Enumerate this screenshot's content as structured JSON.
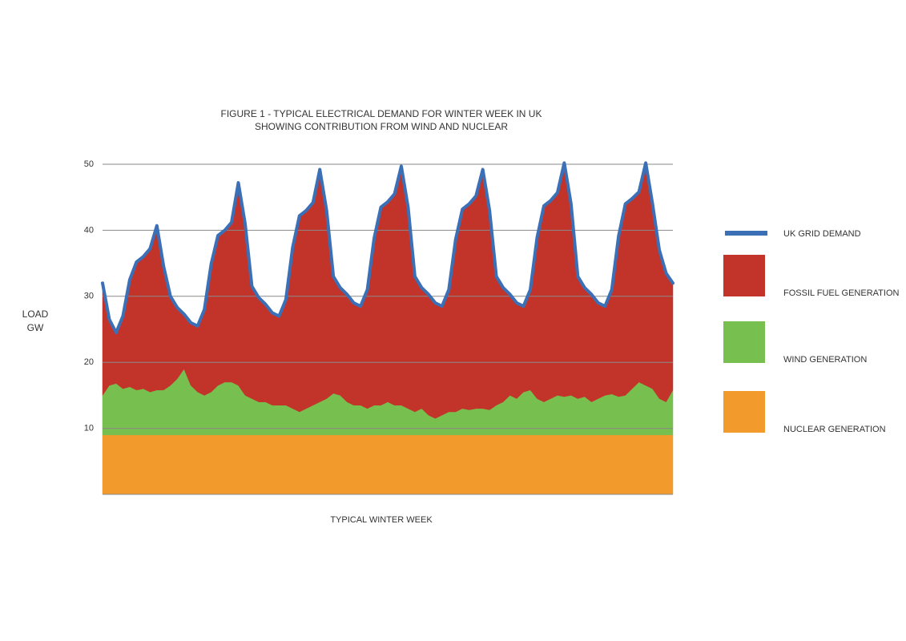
{
  "chart_data": {
    "type": "area",
    "title": "FIGURE 1 - TYPICAL ELECTRICAL DEMAND FOR WINTER WEEK IN UK",
    "subtitle": "SHOWING CONTRIBUTION FROM WIND AND NUCLEAR",
    "x_label": "TYPICAL WINTER WEEK",
    "y_label": "LOAD GW",
    "ylim": [
      0,
      50
    ],
    "yticks": [
      10,
      20,
      30,
      40,
      50
    ],
    "grid": true,
    "stacked": true,
    "legend": "right",
    "series": [
      {
        "name": "UK GRID DEMAND",
        "type": "line",
        "color": "#3b6fb6",
        "values": [
          32,
          26.5,
          24.5,
          27,
          32.5,
          35.2,
          36,
          37.2,
          40.7,
          34.5,
          30,
          28.3,
          27.3,
          26,
          25.5,
          28,
          34.9,
          39.2,
          40,
          41.2,
          47.2,
          41,
          31.5,
          29.8,
          28.8,
          27.5,
          27,
          29.5,
          37.4,
          42.2,
          43,
          44.2,
          49.2,
          43,
          33,
          31.3,
          30.3,
          29,
          28.5,
          31,
          38.8,
          43.5,
          44.3,
          45.5,
          49.7,
          43.5,
          33,
          31.3,
          30.3,
          29,
          28.5,
          31,
          38.6,
          43.2,
          44,
          45.2,
          49.2,
          43,
          33,
          31.3,
          30.3,
          29,
          28.5,
          31,
          38.9,
          43.7,
          44.5,
          45.7,
          50.2,
          44,
          33,
          31.3,
          30.3,
          29,
          28.5,
          31,
          39.1,
          44,
          44.8,
          45.8,
          50.2,
          44,
          37,
          33.5,
          32
        ]
      },
      {
        "name": "FOSSIL FUEL GENERATION",
        "color": "#c2332a",
        "values": [
          17,
          10,
          7.7,
          11,
          16.2,
          19.4,
          20,
          21.7,
          24.9,
          18.7,
          13.5,
          10.8,
          8.3,
          9.5,
          10,
          13,
          19.4,
          22.7,
          23,
          24.2,
          30.7,
          26,
          17,
          15.8,
          14.8,
          14,
          13.5,
          16,
          24.4,
          29.7,
          30,
          30.7,
          35.2,
          28.5,
          17.7,
          16.3,
          16.3,
          15.5,
          15,
          18,
          25.3,
          30,
          30.3,
          32,
          36.2,
          30.5,
          20.5,
          18.3,
          18.3,
          17.5,
          16.5,
          18.5,
          26.1,
          30.2,
          31.2,
          32.2,
          36.2,
          30.2,
          19.5,
          17.3,
          15.3,
          14.5,
          13,
          15.2,
          24.4,
          29.7,
          30,
          30.7,
          35.4,
          29,
          18.5,
          16.5,
          16.3,
          14.5,
          13.5,
          15.8,
          24.3,
          29,
          28.8,
          28.8,
          33.7,
          28,
          22.5,
          19.5,
          16.2
        ]
      },
      {
        "name": "WIND GENERATION",
        "color": "#77bf4e",
        "values": [
          6,
          7.5,
          7.8,
          7,
          7.3,
          6.8,
          7,
          6.5,
          6.8,
          6.8,
          7.5,
          8.5,
          10,
          7.5,
          6.5,
          6,
          6.5,
          7.5,
          8,
          8,
          7.5,
          6,
          5.5,
          5,
          5,
          4.5,
          4.5,
          4.5,
          4,
          3.5,
          4,
          4.5,
          5,
          5.5,
          6.3,
          6,
          5,
          4.5,
          4.5,
          4,
          4.5,
          4.5,
          5,
          4.5,
          4.5,
          4,
          3.5,
          4,
          3,
          2.5,
          3,
          3.5,
          3.5,
          4,
          3.8,
          4,
          4,
          3.8,
          4.5,
          5,
          6,
          5.5,
          6.5,
          6.8,
          5.5,
          5,
          5.5,
          6,
          5.8,
          6,
          5.5,
          5.8,
          5,
          5.5,
          6,
          6.2,
          5.8,
          6,
          7,
          8,
          7.5,
          7,
          5.5,
          5,
          6.8
        ]
      },
      {
        "name": "NUCLEAR GENERATION",
        "color": "#f39a2c",
        "values": [
          9,
          9,
          9,
          9,
          9,
          9,
          9,
          9,
          9,
          9,
          9,
          9,
          9,
          9,
          9,
          9,
          9,
          9,
          9,
          9,
          9,
          9,
          9,
          9,
          9,
          9,
          9,
          9,
          9,
          9,
          9,
          9,
          9,
          9,
          9,
          9,
          9,
          9,
          9,
          9,
          9,
          9,
          9,
          9,
          9,
          9,
          9,
          9,
          9,
          9,
          9,
          9,
          9,
          9,
          9,
          9,
          9,
          9,
          9,
          9,
          9,
          9,
          9,
          9,
          9,
          9,
          9,
          9,
          9,
          9,
          9,
          9,
          9,
          9,
          9,
          9,
          9,
          9,
          9,
          9,
          9,
          9,
          9,
          9,
          9
        ]
      }
    ]
  }
}
